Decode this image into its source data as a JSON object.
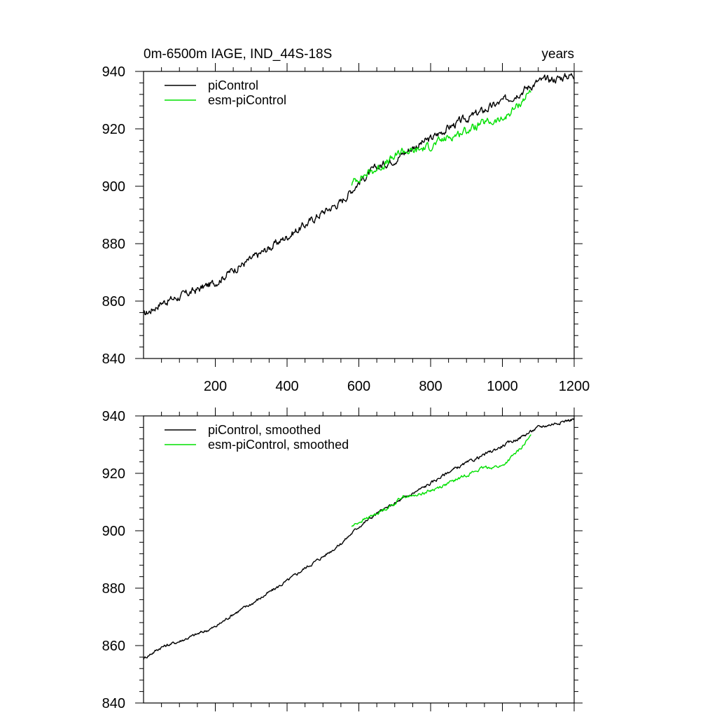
{
  "chart_data": [
    {
      "type": "line",
      "title": "0m-6500m IAGE, IND_44S-18S",
      "title_right": "years",
      "xlabel": "",
      "ylabel": "",
      "xlim": [
        0,
        1200
      ],
      "ylim": [
        840,
        940
      ],
      "xticks": [
        200,
        400,
        600,
        800,
        1000,
        1200
      ],
      "xtick_labels": [
        "200",
        "400",
        "600",
        "800",
        "1000",
        "1200"
      ],
      "yticks": [
        840,
        860,
        880,
        900,
        920,
        940
      ],
      "ytick_labels": [
        "840",
        "860",
        "880",
        "900",
        "920",
        "940"
      ],
      "legend_position": "top-left",
      "noise": 1.1,
      "series": [
        {
          "name": "piControl",
          "color": "#000000",
          "x": [
            0,
            50,
            100,
            150,
            200,
            250,
            300,
            350,
            400,
            450,
            500,
            550,
            600,
            650,
            700,
            750,
            800,
            850,
            900,
            950,
            1000,
            1050,
            1100,
            1150,
            1200
          ],
          "y": [
            855,
            859.5,
            861.5,
            864,
            866.5,
            871,
            874.5,
            878.5,
            882.5,
            886.5,
            891,
            894.5,
            901.5,
            906.5,
            909.5,
            913.5,
            916.5,
            920.5,
            923.5,
            926.5,
            929.5,
            933,
            936.5,
            937.5,
            939
          ]
        },
        {
          "name": "esm-piControl",
          "color": "#00e000",
          "x": [
            580,
            600,
            650,
            700,
            720,
            750,
            800,
            850,
            900,
            950,
            1000,
            1050,
            1080
          ],
          "y": [
            901,
            903,
            906,
            910,
            912.5,
            912,
            914,
            917,
            919.5,
            922,
            923,
            929,
            933.5
          ]
        }
      ]
    },
    {
      "type": "line",
      "title": "",
      "xlabel": "",
      "ylabel": "",
      "xlim": [
        0,
        1200
      ],
      "ylim": [
        840,
        940
      ],
      "xticks": [
        200,
        400,
        600,
        800,
        1000,
        1200
      ],
      "xtick_labels": [],
      "yticks": [
        840,
        860,
        880,
        900,
        920,
        940
      ],
      "ytick_labels": [
        "840",
        "860",
        "880",
        "900",
        "920",
        "940"
      ],
      "legend_position": "top-left",
      "noise": 0.45,
      "series": [
        {
          "name": "piControl, smoothed",
          "color": "#000000",
          "x": [
            0,
            50,
            100,
            150,
            200,
            250,
            300,
            350,
            400,
            450,
            500,
            550,
            600,
            650,
            700,
            750,
            800,
            850,
            900,
            950,
            1000,
            1050,
            1100,
            1150,
            1200
          ],
          "y": [
            855.5,
            859.5,
            861.5,
            864,
            866.5,
            871,
            874.5,
            878.5,
            882.5,
            887,
            891,
            895.5,
            901.5,
            906,
            909.5,
            913,
            916.5,
            920.5,
            923.5,
            926.5,
            929.5,
            932.5,
            936,
            937.5,
            939
          ]
        },
        {
          "name": "esm-piControl, smoothed",
          "color": "#00e000",
          "x": [
            580,
            600,
            650,
            700,
            720,
            750,
            800,
            850,
            900,
            950,
            1000,
            1050,
            1080
          ],
          "y": [
            901.5,
            903,
            906,
            909.5,
            912,
            912,
            914,
            916.5,
            919.5,
            922,
            922.5,
            928.5,
            933
          ]
        }
      ]
    }
  ]
}
